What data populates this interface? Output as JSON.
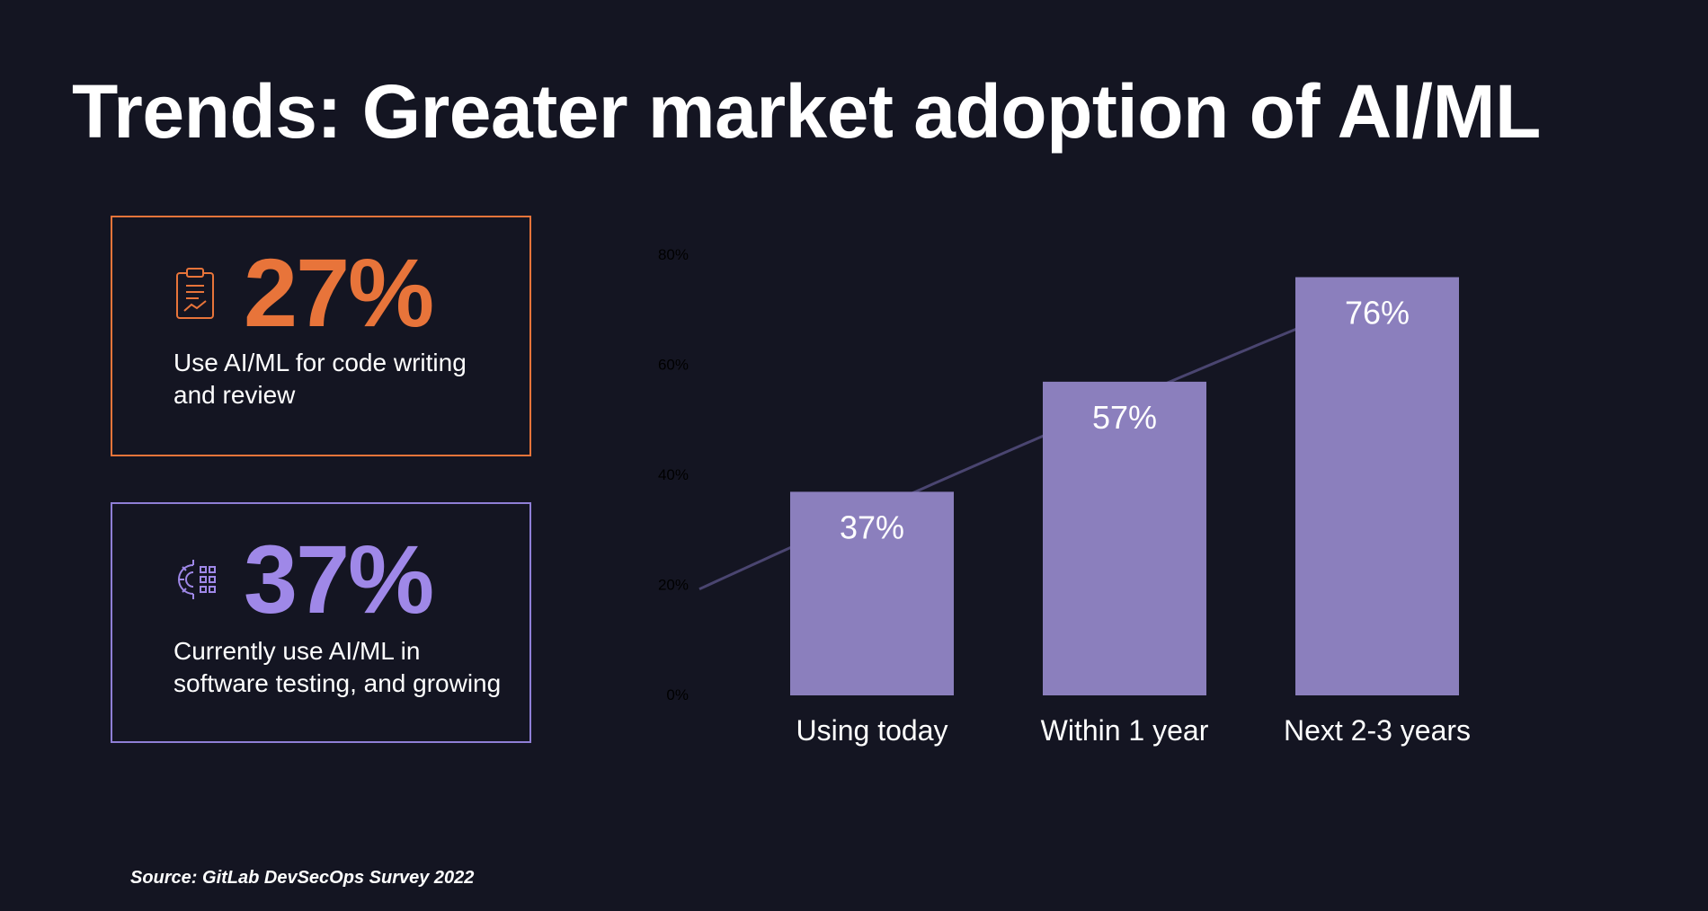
{
  "slide": {
    "title": "Trends: Greater market adoption of AI/ML",
    "source": "Source: GitLab DevSecOps Survey 2022"
  },
  "stats": [
    {
      "value": "27%",
      "description": "Use AI/ML for code writing and review",
      "icon": "clipboard-chart-icon",
      "color": "#e8743a"
    },
    {
      "value": "37%",
      "description": "Currently use AI/ML in software testing, and growing",
      "icon": "gear-circuit-icon",
      "color": "#9f88e8"
    }
  ],
  "chart_data": {
    "type": "bar",
    "categories": [
      "Using today",
      "Within 1 year",
      "Next 2-3 years"
    ],
    "values": [
      37,
      57,
      76
    ],
    "data_labels": [
      "37%",
      "57%",
      "76%"
    ],
    "y_ticks": [
      0,
      20,
      40,
      60,
      80
    ],
    "y_tick_labels": [
      "0%",
      "20%",
      "40%",
      "60%",
      "80%"
    ],
    "ylim": [
      0,
      80
    ],
    "trend_line": true,
    "bar_color": "#8b7fbd",
    "trend_color": "#4a4570",
    "grid": false
  }
}
